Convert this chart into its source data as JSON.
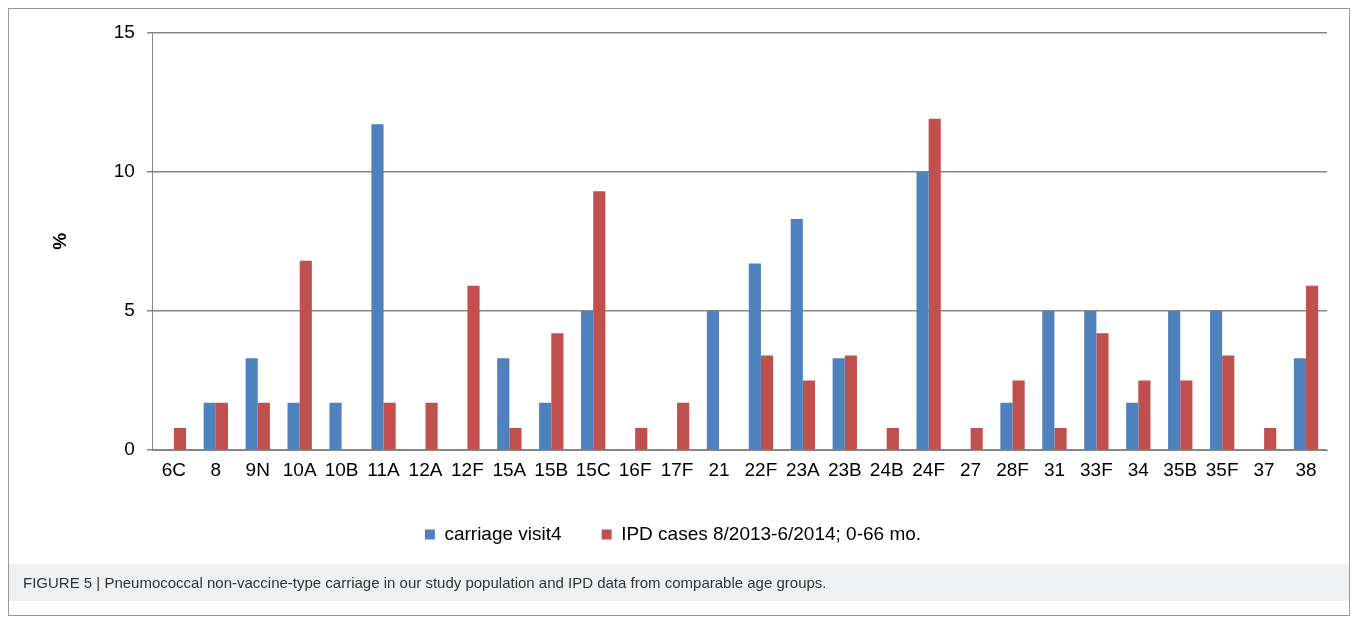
{
  "chart_data": {
    "type": "bar",
    "ylabel": "%",
    "categories": [
      "6C",
      "8",
      "9N",
      "10A",
      "10B",
      "11A",
      "12A",
      "12F",
      "15A",
      "15B",
      "15C",
      "16F",
      "17F",
      "21",
      "22F",
      "23A",
      "23B",
      "24B",
      "24F",
      "27",
      "28F",
      "31",
      "33F",
      "34",
      "35B",
      "35F",
      "37",
      "38"
    ],
    "series": [
      {
        "name": "carriage visit4",
        "color": "#4f81bd",
        "values": [
          0,
          1.7,
          3.3,
          1.7,
          1.7,
          11.7,
          0,
          0,
          3.3,
          1.7,
          5,
          0,
          0,
          5,
          6.7,
          8.3,
          3.3,
          0,
          10,
          0,
          1.7,
          5,
          5,
          1.7,
          5,
          5,
          0,
          3.3
        ]
      },
      {
        "name": "IPD cases 8/2013-6/2014; 0-66 mo.",
        "color": "#c0504d",
        "values": [
          0.8,
          1.7,
          1.7,
          6.8,
          0,
          1.7,
          1.7,
          5.9,
          0.8,
          4.2,
          9.3,
          0.8,
          1.7,
          0,
          3.4,
          2.5,
          3.4,
          0.8,
          11.9,
          0.8,
          2.5,
          0.8,
          4.2,
          2.5,
          2.5,
          3.4,
          0.8,
          5.9
        ]
      }
    ],
    "ylim": [
      0,
      15
    ],
    "yticks": [
      0,
      5,
      10,
      15
    ],
    "grid": "y",
    "legend": "bottom",
    "annotations": [
      "FIGURE 5 | Pneumococcal non-vaccine-type carriage in our study population and IPD data from comparable age groups."
    ]
  }
}
